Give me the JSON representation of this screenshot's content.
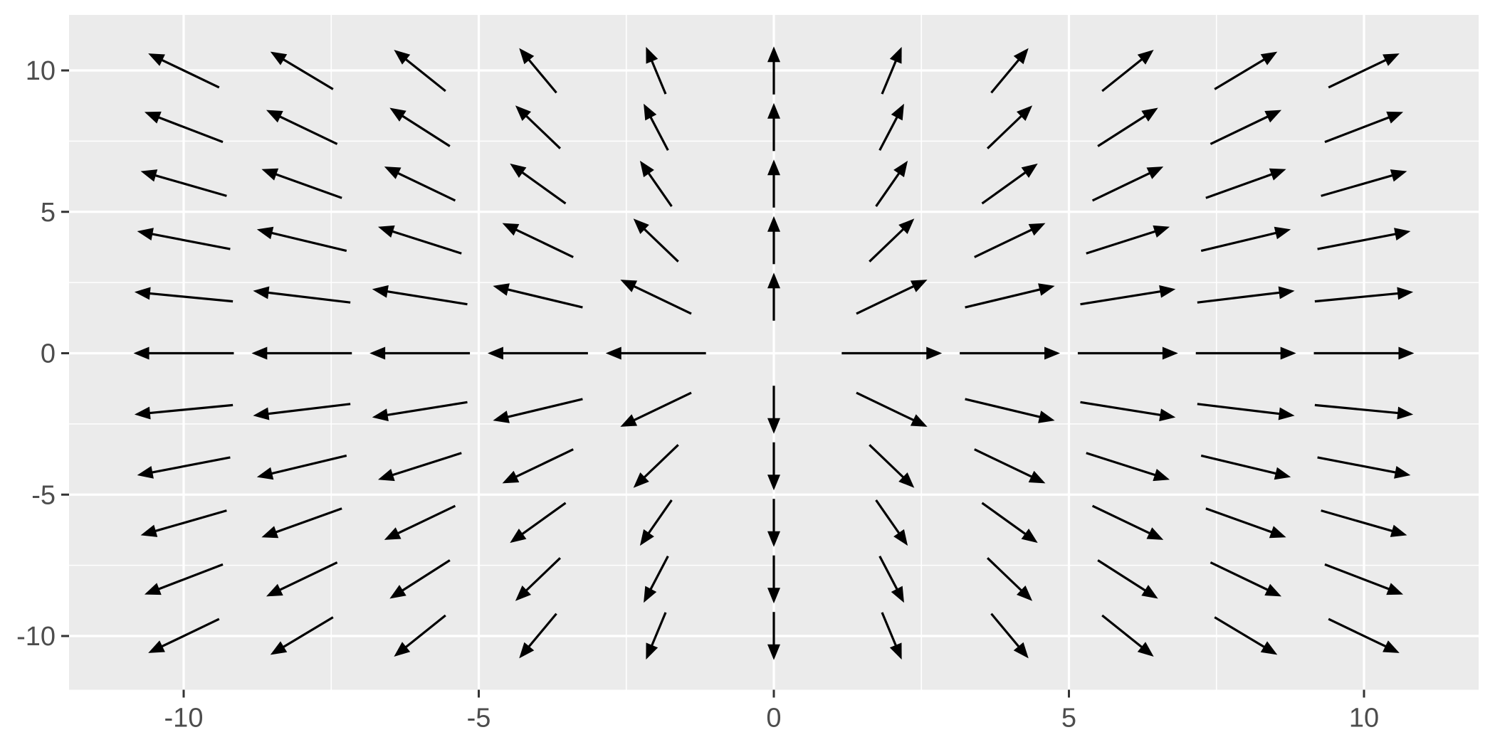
{
  "chart_data": {
    "type": "quiver",
    "title": "",
    "xlabel": "",
    "ylabel": "",
    "legend": "none",
    "grid": true,
    "panel_theme": "ggplot2 grey panel with white major and minor gridlines",
    "x_ticks": [
      -10,
      -5,
      0,
      5,
      10
    ],
    "y_ticks": [
      -10,
      -5,
      0,
      5,
      10
    ],
    "x_minor_ticks": [
      -7.5,
      -2.5,
      2.5,
      7.5
    ],
    "y_minor_ticks": [
      -7.5,
      -2.5,
      2.5,
      7.5
    ],
    "xlim": [
      -11.95,
      11.95
    ],
    "ylim": [
      -11.95,
      11.95
    ],
    "x_grid_points": [
      -10,
      -8,
      -6,
      -4,
      -2,
      0,
      2,
      4,
      6,
      8,
      10
    ],
    "y_grid_points": [
      -10,
      -8,
      -6,
      -4,
      -2,
      0,
      2,
      4,
      6,
      8,
      10
    ],
    "field": "F(x,y) = (x, y)/sqrt(x^2+y^2) — unit-length radial vectors pointing away from the origin; no arrow at (0,0)",
    "arrow_length_data_units": 1.7,
    "arrows_centered_on_grid": true,
    "excluded_points": [
      [
        0,
        0
      ]
    ],
    "points": [
      [
        -10,
        10,
        -0.707,
        0.707
      ],
      [
        -8,
        10,
        -0.625,
        0.781
      ],
      [
        -6,
        10,
        -0.514,
        0.857
      ],
      [
        -4,
        10,
        -0.371,
        0.928
      ],
      [
        -2,
        10,
        -0.196,
        0.981
      ],
      [
        0,
        10,
        0,
        1
      ],
      [
        2,
        10,
        0.196,
        0.981
      ],
      [
        4,
        10,
        0.371,
        0.928
      ],
      [
        6,
        10,
        0.514,
        0.857
      ],
      [
        8,
        10,
        0.625,
        0.781
      ],
      [
        10,
        10,
        0.707,
        0.707
      ],
      [
        -10,
        8,
        -0.781,
        0.625
      ],
      [
        -8,
        8,
        -0.707,
        0.707
      ],
      [
        -6,
        8,
        -0.6,
        0.8
      ],
      [
        -4,
        8,
        -0.447,
        0.894
      ],
      [
        -2,
        8,
        -0.243,
        0.97
      ],
      [
        0,
        8,
        0,
        1
      ],
      [
        2,
        8,
        0.243,
        0.97
      ],
      [
        4,
        8,
        0.447,
        0.894
      ],
      [
        6,
        8,
        0.6,
        0.8
      ],
      [
        8,
        8,
        0.707,
        0.707
      ],
      [
        10,
        8,
        0.781,
        0.625
      ],
      [
        -10,
        6,
        -0.857,
        0.514
      ],
      [
        -8,
        6,
        -0.8,
        0.6
      ],
      [
        -6,
        6,
        -0.707,
        0.707
      ],
      [
        -4,
        6,
        -0.555,
        0.832
      ],
      [
        -2,
        6,
        -0.316,
        0.949
      ],
      [
        0,
        6,
        0,
        1
      ],
      [
        2,
        6,
        0.316,
        0.949
      ],
      [
        4,
        6,
        0.555,
        0.832
      ],
      [
        6,
        6,
        0.707,
        0.707
      ],
      [
        8,
        6,
        0.8,
        0.6
      ],
      [
        10,
        6,
        0.857,
        0.514
      ],
      [
        -10,
        4,
        -0.928,
        0.371
      ],
      [
        -8,
        4,
        -0.894,
        0.447
      ],
      [
        -6,
        4,
        -0.832,
        0.555
      ],
      [
        -4,
        4,
        -0.707,
        0.707
      ],
      [
        -2,
        4,
        -0.447,
        0.894
      ],
      [
        0,
        4,
        0,
        1
      ],
      [
        2,
        4,
        0.447,
        0.894
      ],
      [
        4,
        4,
        0.707,
        0.707
      ],
      [
        6,
        4,
        0.832,
        0.555
      ],
      [
        8,
        4,
        0.894,
        0.447
      ],
      [
        10,
        4,
        0.928,
        0.371
      ],
      [
        -10,
        2,
        -0.981,
        0.196
      ],
      [
        -8,
        2,
        -0.97,
        0.243
      ],
      [
        -6,
        2,
        -0.949,
        0.316
      ],
      [
        -4,
        2,
        -0.894,
        0.447
      ],
      [
        -2,
        2,
        -0.707,
        0.707
      ],
      [
        0,
        2,
        0,
        1
      ],
      [
        2,
        2,
        0.707,
        0.707
      ],
      [
        4,
        2,
        0.894,
        0.447
      ],
      [
        6,
        2,
        0.949,
        0.316
      ],
      [
        8,
        2,
        0.97,
        0.243
      ],
      [
        10,
        2,
        0.981,
        0.196
      ],
      [
        -10,
        0,
        -1,
        0
      ],
      [
        -8,
        0,
        -1,
        0
      ],
      [
        -6,
        0,
        -1,
        0
      ],
      [
        -4,
        0,
        -1,
        0
      ],
      [
        -2,
        0,
        -1,
        0
      ],
      [
        2,
        0,
        1,
        0
      ],
      [
        4,
        0,
        1,
        0
      ],
      [
        6,
        0,
        1,
        0
      ],
      [
        8,
        0,
        1,
        0
      ],
      [
        10,
        0,
        1,
        0
      ],
      [
        -10,
        -2,
        -0.981,
        -0.196
      ],
      [
        -8,
        -2,
        -0.97,
        -0.243
      ],
      [
        -6,
        -2,
        -0.949,
        -0.316
      ],
      [
        -4,
        -2,
        -0.894,
        -0.447
      ],
      [
        -2,
        -2,
        -0.707,
        -0.707
      ],
      [
        0,
        -2,
        0,
        -1
      ],
      [
        2,
        -2,
        0.707,
        -0.707
      ],
      [
        4,
        -2,
        0.894,
        -0.447
      ],
      [
        6,
        -2,
        0.949,
        -0.316
      ],
      [
        8,
        -2,
        0.97,
        -0.243
      ],
      [
        10,
        -2,
        0.981,
        -0.196
      ],
      [
        -10,
        -4,
        -0.928,
        -0.371
      ],
      [
        -8,
        -4,
        -0.894,
        -0.447
      ],
      [
        -6,
        -4,
        -0.832,
        -0.555
      ],
      [
        -4,
        -4,
        -0.707,
        -0.707
      ],
      [
        -2,
        -4,
        -0.447,
        -0.894
      ],
      [
        0,
        -4,
        0,
        -1
      ],
      [
        2,
        -4,
        0.447,
        -0.894
      ],
      [
        4,
        -4,
        0.707,
        -0.707
      ],
      [
        6,
        -4,
        0.832,
        -0.555
      ],
      [
        8,
        -4,
        0.894,
        -0.447
      ],
      [
        10,
        -4,
        0.928,
        -0.371
      ],
      [
        -10,
        -6,
        -0.857,
        -0.514
      ],
      [
        -8,
        -6,
        -0.8,
        -0.6
      ],
      [
        -6,
        -6,
        -0.707,
        -0.707
      ],
      [
        -4,
        -6,
        -0.555,
        -0.832
      ],
      [
        -2,
        -6,
        -0.316,
        -0.949
      ],
      [
        0,
        -6,
        0,
        -1
      ],
      [
        2,
        -6,
        0.316,
        -0.949
      ],
      [
        4,
        -6,
        0.555,
        -0.832
      ],
      [
        6,
        -6,
        0.707,
        -0.707
      ],
      [
        8,
        -6,
        0.8,
        -0.6
      ],
      [
        10,
        -6,
        0.857,
        -0.514
      ],
      [
        -10,
        -8,
        -0.781,
        -0.625
      ],
      [
        -8,
        -8,
        -0.707,
        -0.707
      ],
      [
        -6,
        -8,
        -0.6,
        -0.8
      ],
      [
        -4,
        -8,
        -0.447,
        -0.894
      ],
      [
        -2,
        -8,
        -0.243,
        -0.97
      ],
      [
        0,
        -8,
        0,
        -1
      ],
      [
        2,
        -8,
        0.243,
        -0.97
      ],
      [
        4,
        -8,
        0.447,
        -0.894
      ],
      [
        6,
        -8,
        0.6,
        -0.8
      ],
      [
        8,
        -8,
        0.707,
        -0.707
      ],
      [
        10,
        -8,
        0.781,
        -0.625
      ],
      [
        -10,
        -10,
        -0.707,
        -0.707
      ],
      [
        -8,
        -10,
        -0.625,
        -0.781
      ],
      [
        -6,
        -10,
        -0.514,
        -0.857
      ],
      [
        -4,
        -10,
        -0.371,
        -0.928
      ],
      [
        -2,
        -10,
        -0.196,
        -0.981
      ],
      [
        0,
        -10,
        0,
        -1
      ],
      [
        2,
        -10,
        0.196,
        -0.981
      ],
      [
        4,
        -10,
        0.371,
        -0.928
      ],
      [
        6,
        -10,
        0.514,
        -0.857
      ],
      [
        8,
        -10,
        0.625,
        -0.781
      ],
      [
        10,
        -10,
        0.707,
        -0.707
      ]
    ]
  },
  "style": {
    "background": "#FFFFFF",
    "panel_bg": "#EBEBEB",
    "grid_color": "#FFFFFF",
    "arrow_color": "#000000",
    "axis_text_color": "#4D4D4D",
    "tick_mark_color": "#333333"
  }
}
